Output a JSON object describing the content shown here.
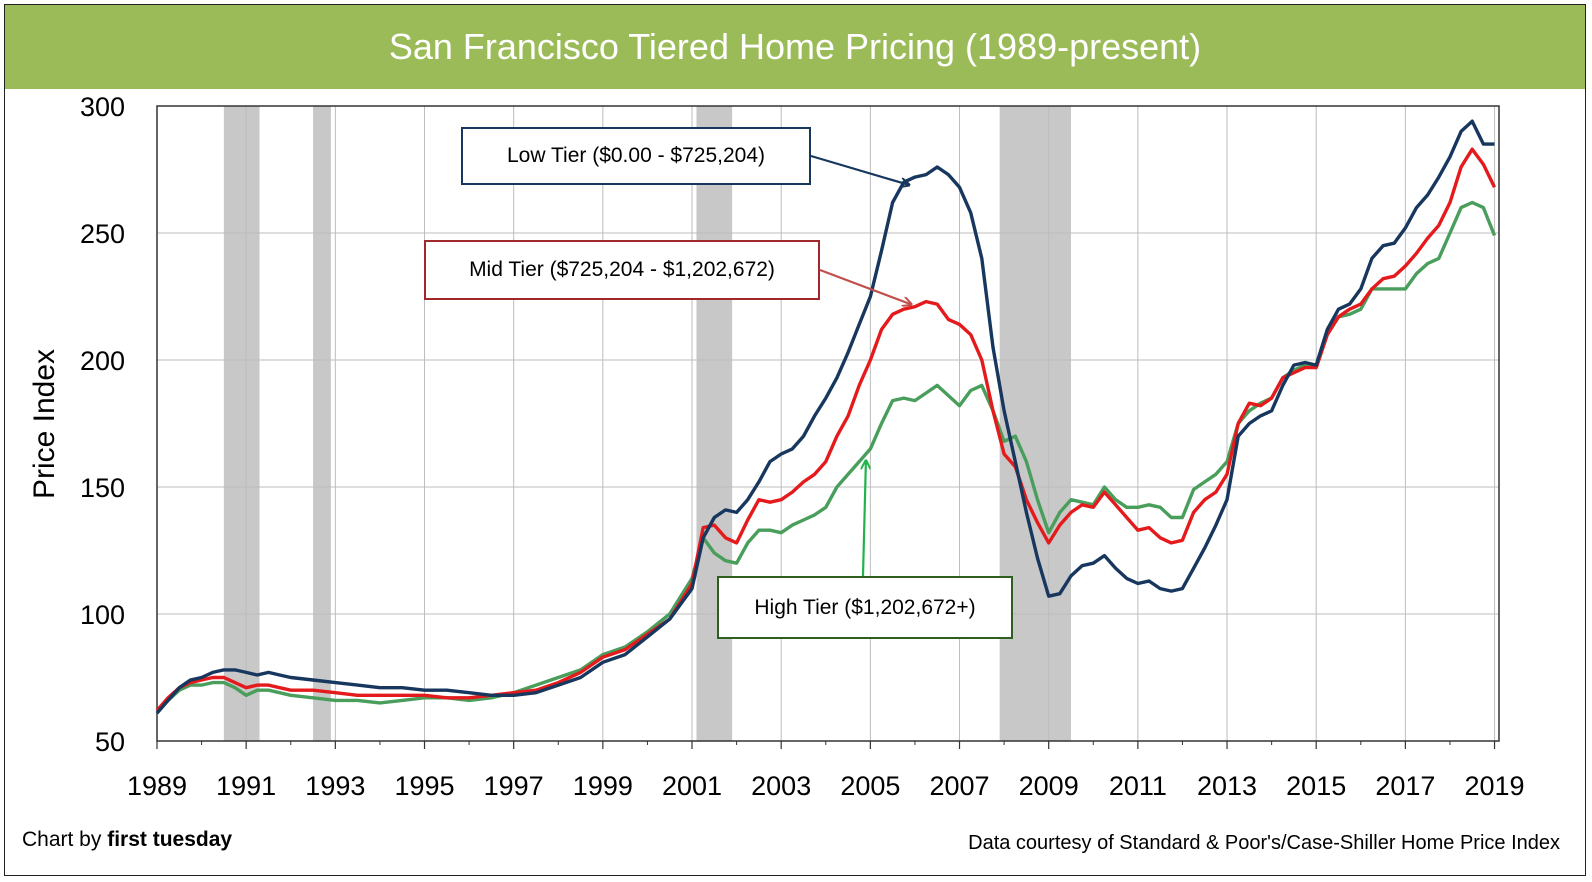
{
  "page": {
    "title": "San Francisco Tiered Home Pricing (1989-present)"
  },
  "footer": {
    "credit_prefix": "Chart by",
    "credit_brand": "first tuesday",
    "source": "Data courtesy of Standard & Poor's/Case-Shiller Home Price Index"
  },
  "colors": {
    "banner": "#9bbb59",
    "low": "#17375e",
    "mid": "#e41a1c",
    "high": "#4a9e5c",
    "recession": "#c8c8c8",
    "low_border": "#17375e",
    "mid_border": "#a0282c",
    "high_border": "#2e5f20",
    "high_arrow": "#1fb44a",
    "mid_arrow": "#c0504d"
  },
  "chart_data": {
    "type": "line",
    "title": "San Francisco Tiered Home Pricing (1989-present)",
    "xlabel": "",
    "ylabel": "Price Index",
    "xlim": [
      1989,
      2019.1
    ],
    "ylim": [
      50,
      300
    ],
    "yticks": [
      50,
      100,
      150,
      200,
      250,
      300
    ],
    "xticks": [
      1989,
      1991,
      1993,
      1995,
      1997,
      1999,
      2001,
      2003,
      2005,
      2007,
      2009,
      2011,
      2013,
      2015,
      2017,
      2019
    ],
    "grid": true,
    "legend": "callouts",
    "recessions": [
      [
        1990.5,
        1991.3
      ],
      [
        1992.5,
        1992.9
      ],
      [
        2001.1,
        2001.9
      ],
      [
        2007.9,
        2009.5
      ]
    ],
    "annotations": [
      {
        "series": "low",
        "text": "Low Tier ($0.00 - $725,204)",
        "target_x": 2005.85,
        "target_y": 269
      },
      {
        "series": "mid",
        "text": "Mid Tier ($725,204 - $1,202,672)",
        "target_x": 2005.9,
        "target_y": 222
      },
      {
        "series": "high",
        "text": "High Tier ($1,202,672+)",
        "target_x": 2004.9,
        "target_y": 160
      }
    ],
    "series": [
      {
        "name": "Low Tier ($0.00 - $725,204)",
        "key": "low",
        "x": [
          1989.0,
          1989.25,
          1989.5,
          1989.75,
          1990.0,
          1990.25,
          1990.5,
          1990.75,
          1991.0,
          1991.25,
          1991.5,
          1991.75,
          1992.0,
          1992.5,
          1993.0,
          1993.5,
          1994.0,
          1994.5,
          1995.0,
          1995.5,
          1996.0,
          1996.5,
          1997.0,
          1997.5,
          1998.0,
          1998.5,
          1999.0,
          1999.5,
          2000.0,
          2000.5,
          2001.0,
          2001.25,
          2001.5,
          2001.75,
          2002.0,
          2002.25,
          2002.5,
          2002.75,
          2003.0,
          2003.25,
          2003.5,
          2003.75,
          2004.0,
          2004.25,
          2004.5,
          2004.75,
          2005.0,
          2005.25,
          2005.5,
          2005.75,
          2006.0,
          2006.25,
          2006.5,
          2006.75,
          2007.0,
          2007.25,
          2007.5,
          2007.75,
          2008.0,
          2008.25,
          2008.5,
          2008.75,
          2009.0,
          2009.25,
          2009.5,
          2009.75,
          2010.0,
          2010.25,
          2010.5,
          2010.75,
          2011.0,
          2011.25,
          2011.5,
          2011.75,
          2012.0,
          2012.25,
          2012.5,
          2012.75,
          2013.0,
          2013.25,
          2013.5,
          2013.75,
          2014.0,
          2014.25,
          2014.5,
          2014.75,
          2015.0,
          2015.25,
          2015.5,
          2015.75,
          2016.0,
          2016.25,
          2016.5,
          2016.75,
          2017.0,
          2017.25,
          2017.5,
          2017.75,
          2018.0,
          2018.25,
          2018.5,
          2018.75,
          2019.0
        ],
        "values": [
          61,
          66,
          71,
          74,
          75,
          77,
          78,
          78,
          77,
          76,
          77,
          76,
          75,
          74,
          73,
          72,
          71,
          71,
          70,
          70,
          69,
          68,
          68,
          69,
          72,
          75,
          81,
          84,
          91,
          98,
          110,
          130,
          138,
          141,
          140,
          145,
          152,
          160,
          163,
          165,
          170,
          178,
          185,
          193,
          203,
          214,
          225,
          243,
          262,
          270,
          272,
          273,
          276,
          273,
          268,
          258,
          240,
          205,
          180,
          160,
          140,
          122,
          107,
          108,
          115,
          119,
          120,
          123,
          118,
          114,
          112,
          113,
          110,
          109,
          110,
          118,
          126,
          135,
          145,
          170,
          175,
          178,
          180,
          190,
          198,
          199,
          198,
          212,
          220,
          222,
          228,
          240,
          245,
          246,
          252,
          260,
          265,
          272,
          280,
          290,
          294,
          285,
          285
        ]
      },
      {
        "name": "Mid Tier ($725,204 - $1,202,672)",
        "key": "mid",
        "x": [
          1989.0,
          1989.25,
          1989.5,
          1989.75,
          1990.0,
          1990.25,
          1990.5,
          1990.75,
          1991.0,
          1991.25,
          1991.5,
          1991.75,
          1992.0,
          1992.5,
          1993.0,
          1993.5,
          1994.0,
          1994.5,
          1995.0,
          1995.5,
          1996.0,
          1996.5,
          1997.0,
          1997.5,
          1998.0,
          1998.5,
          1999.0,
          1999.5,
          2000.0,
          2000.5,
          2001.0,
          2001.25,
          2001.5,
          2001.75,
          2002.0,
          2002.25,
          2002.5,
          2002.75,
          2003.0,
          2003.25,
          2003.5,
          2003.75,
          2004.0,
          2004.25,
          2004.5,
          2004.75,
          2005.0,
          2005.25,
          2005.5,
          2005.75,
          2006.0,
          2006.25,
          2006.5,
          2006.75,
          2007.0,
          2007.25,
          2007.5,
          2007.75,
          2008.0,
          2008.25,
          2008.5,
          2008.75,
          2009.0,
          2009.25,
          2009.5,
          2009.75,
          2010.0,
          2010.25,
          2010.5,
          2010.75,
          2011.0,
          2011.25,
          2011.5,
          2011.75,
          2012.0,
          2012.25,
          2012.5,
          2012.75,
          2013.0,
          2013.25,
          2013.5,
          2013.75,
          2014.0,
          2014.25,
          2014.5,
          2014.75,
          2015.0,
          2015.25,
          2015.5,
          2015.75,
          2016.0,
          2016.25,
          2016.5,
          2016.75,
          2017.0,
          2017.25,
          2017.5,
          2017.75,
          2018.0,
          2018.25,
          2018.5,
          2018.75,
          2019.0
        ],
        "values": [
          62,
          67,
          71,
          73,
          74,
          75,
          75,
          73,
          71,
          72,
          72,
          71,
          70,
          70,
          69,
          68,
          68,
          68,
          68,
          67,
          67,
          68,
          69,
          70,
          73,
          77,
          83,
          86,
          92,
          98,
          112,
          134,
          135,
          130,
          128,
          137,
          145,
          144,
          145,
          148,
          152,
          155,
          160,
          170,
          178,
          190,
          200,
          212,
          218,
          220,
          221,
          223,
          222,
          216,
          214,
          210,
          200,
          180,
          163,
          158,
          145,
          136,
          128,
          135,
          140,
          143,
          142,
          148,
          143,
          138,
          133,
          134,
          130,
          128,
          129,
          140,
          145,
          148,
          155,
          175,
          183,
          182,
          185,
          193,
          195,
          197,
          197,
          210,
          217,
          220,
          222,
          228,
          232,
          233,
          237,
          242,
          248,
          253,
          262,
          276,
          283,
          277,
          268
        ]
      },
      {
        "name": "High Tier ($1,202,672+)",
        "key": "high",
        "x": [
          1989.0,
          1989.25,
          1989.5,
          1989.75,
          1990.0,
          1990.25,
          1990.5,
          1990.75,
          1991.0,
          1991.25,
          1991.5,
          1991.75,
          1992.0,
          1992.5,
          1993.0,
          1993.5,
          1994.0,
          1994.5,
          1995.0,
          1995.5,
          1996.0,
          1996.5,
          1997.0,
          1997.5,
          1998.0,
          1998.5,
          1999.0,
          1999.5,
          2000.0,
          2000.5,
          2001.0,
          2001.25,
          2001.5,
          2001.75,
          2002.0,
          2002.25,
          2002.5,
          2002.75,
          2003.0,
          2003.25,
          2003.5,
          2003.75,
          2004.0,
          2004.25,
          2004.5,
          2004.75,
          2005.0,
          2005.25,
          2005.5,
          2005.75,
          2006.0,
          2006.25,
          2006.5,
          2006.75,
          2007.0,
          2007.25,
          2007.5,
          2007.75,
          2008.0,
          2008.25,
          2008.5,
          2008.75,
          2009.0,
          2009.25,
          2009.5,
          2009.75,
          2010.0,
          2010.25,
          2010.5,
          2010.75,
          2011.0,
          2011.25,
          2011.5,
          2011.75,
          2012.0,
          2012.25,
          2012.5,
          2012.75,
          2013.0,
          2013.25,
          2013.5,
          2013.75,
          2014.0,
          2014.25,
          2014.5,
          2014.75,
          2015.0,
          2015.25,
          2015.5,
          2015.75,
          2016.0,
          2016.25,
          2016.5,
          2016.75,
          2017.0,
          2017.25,
          2017.5,
          2017.75,
          2018.0,
          2018.25,
          2018.5,
          2018.75,
          2019.0
        ],
        "values": [
          62,
          66,
          70,
          72,
          72,
          73,
          73,
          71,
          68,
          70,
          70,
          69,
          68,
          67,
          66,
          66,
          65,
          66,
          67,
          67,
          66,
          67,
          69,
          72,
          75,
          78,
          84,
          87,
          93,
          100,
          114,
          130,
          124,
          121,
          120,
          128,
          133,
          133,
          132,
          135,
          137,
          139,
          142,
          150,
          155,
          160,
          165,
          175,
          184,
          185,
          184,
          187,
          190,
          186,
          182,
          188,
          190,
          180,
          168,
          170,
          160,
          145,
          132,
          140,
          145,
          144,
          143,
          150,
          145,
          142,
          142,
          143,
          142,
          138,
          138,
          149,
          152,
          155,
          160,
          175,
          180,
          183,
          185,
          193,
          196,
          198,
          197,
          210,
          217,
          218,
          220,
          228,
          228,
          228,
          228,
          234,
          238,
          240,
          250,
          260,
          262,
          260,
          249
        ]
      }
    ]
  }
}
